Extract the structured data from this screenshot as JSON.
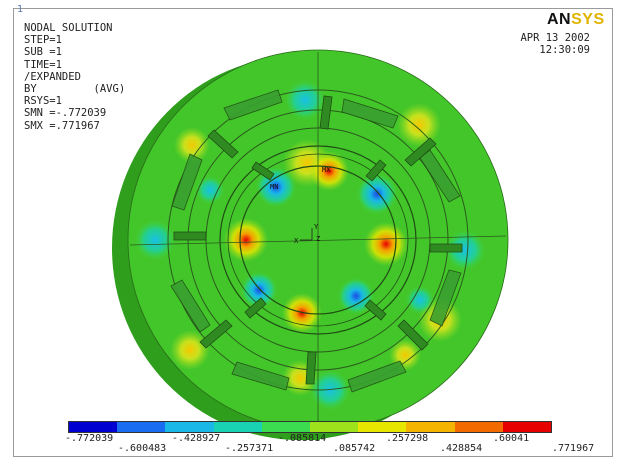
{
  "window": {
    "number": "1"
  },
  "info": {
    "lines": [
      "NODAL SOLUTION",
      "STEP=1",
      "SUB =1",
      "TIME=1",
      "/EXPANDED",
      "BY         (AVG)",
      "RSYS=1",
      "SMN =-.772039",
      "SMX =.771967"
    ]
  },
  "logo": {
    "part1": "AN",
    "part2": "SYS"
  },
  "date": "APR 13 2002",
  "time": "12:30:09",
  "triad": {
    "x_label": "X",
    "y_label": "Y",
    "z_label": "Z"
  },
  "legend": {
    "colors": [
      "#0000d0",
      "#1a6cf0",
      "#19b8e6",
      "#19d2b4",
      "#3cdc50",
      "#9ee21c",
      "#e6e600",
      "#f5b400",
      "#f26a00",
      "#e60000"
    ],
    "top_labels": [
      "-.772039",
      "-.428927",
      "-.085814",
      ".257298",
      ".60041"
    ],
    "bottom_labels": [
      "-.600483",
      "-.257371",
      ".085742",
      ".428854",
      ".771967"
    ]
  }
}
